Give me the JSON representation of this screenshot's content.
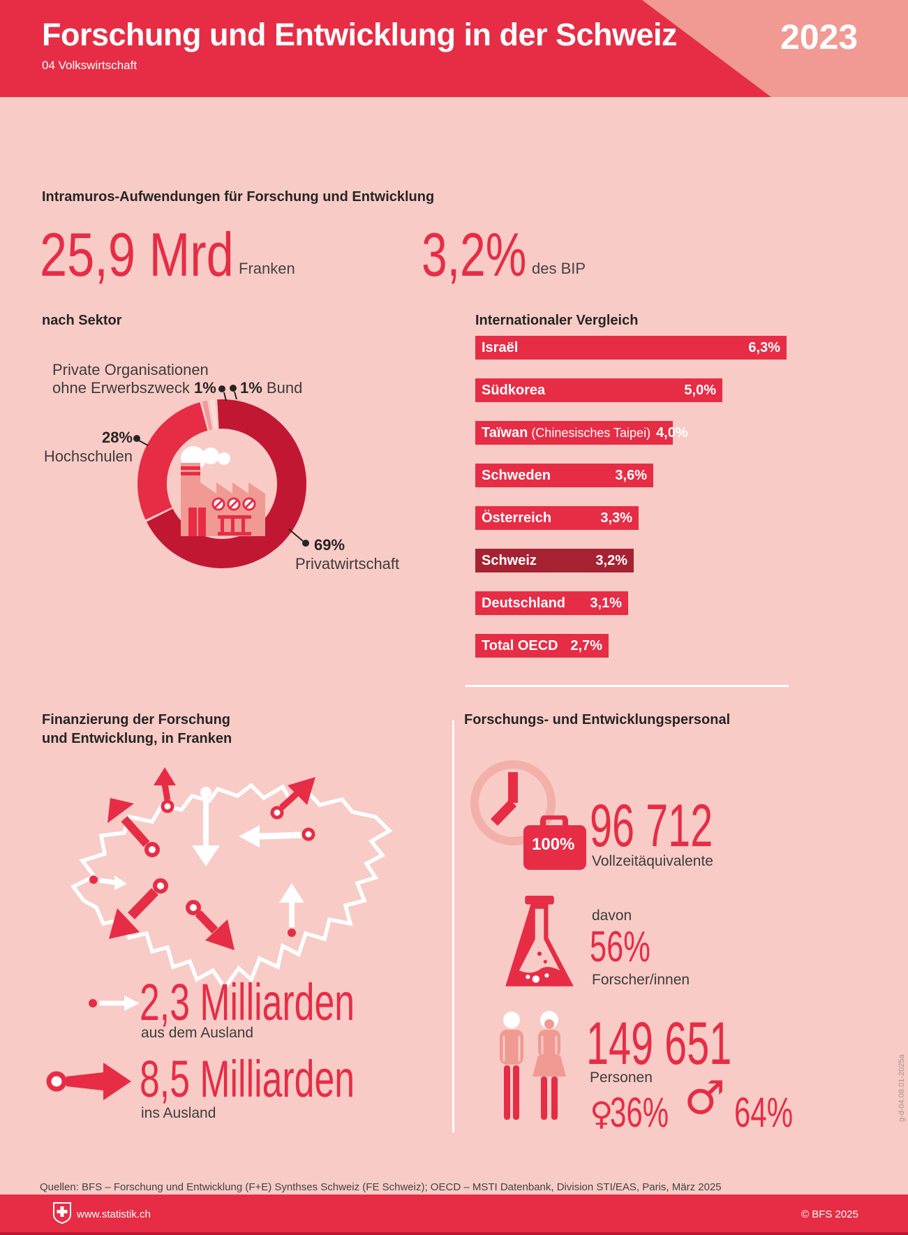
{
  "header": {
    "title": "Forschung und Entwicklung in der Schweiz",
    "subtitle": "04 Volkswirtschaft",
    "year": "2023"
  },
  "intramuros": {
    "heading": "Intramuros-Aufwendungen für Forschung und Entwicklung",
    "amount": "25,9 Mrd",
    "amount_unit": "Franken",
    "gdp_share": "3,2%",
    "gdp_unit": "des BIP"
  },
  "chart_data": [
    {
      "type": "pie",
      "title": "nach Sektor",
      "unit": "%",
      "slices": [
        {
          "key": "privatwirtschaft",
          "label": "Privatwirtschaft",
          "value": 69,
          "value_label": "69%",
          "color": "#c21732"
        },
        {
          "key": "hochschulen",
          "label": "Hochschulen",
          "value": 28,
          "value_label": "28%",
          "color": "#e62d45"
        },
        {
          "key": "private-organisationen",
          "label": "Private Organisationen ohne Erwerbszweck",
          "value": 1,
          "value_label": "1%",
          "color": "#ef9aa0",
          "display": {
            "line1": "Private Organisationen",
            "line2": "ohne Erwerbszweck"
          }
        },
        {
          "key": "bund",
          "label": "Bund",
          "value": 1,
          "value_label": "1%",
          "color": "#f8dcd8"
        }
      ]
    },
    {
      "type": "bar",
      "title": "Internationaler Vergleich",
      "unit": "% des BIP",
      "categories": [
        "Israël",
        "Südkorea",
        "Taïwan",
        "Schweden",
        "Österreich",
        "Schweiz",
        "Deutschland",
        "Total OECD"
      ],
      "category_suffixes": [
        "",
        "",
        "(Chinesisches Taipei)",
        "",
        "",
        "",
        "",
        ""
      ],
      "values": [
        6.3,
        5.0,
        4.0,
        3.6,
        3.3,
        3.2,
        3.1,
        2.7
      ],
      "value_labels": [
        "6,3%",
        "5,0%",
        "4,0%",
        "3,6%",
        "3,3%",
        "3,2%",
        "3,1%",
        "2,7%"
      ],
      "xlim": [
        0,
        6.3
      ],
      "highlight_index": 5,
      "bar_color": "#e62d45",
      "highlight_color": "#a52232",
      "legend_position": "none",
      "grid": false
    }
  ],
  "financing": {
    "heading_line1": "Finanzierung der Forschung",
    "heading_line2": "und Entwicklung, in Franken",
    "inflow_value": "2,3 Milliarden",
    "inflow_label": "aus dem Ausland",
    "outflow_value": "8,5 Milliarden",
    "outflow_label": "ins Ausland"
  },
  "personnel": {
    "heading": "Forschungs- und Entwicklungspersonal",
    "badge": "100%",
    "fte_value": "96 712",
    "fte_label": "Vollzeitäquivalente",
    "davon": "davon",
    "researchers_pct": "56%",
    "researchers_label": "Forscher/innen",
    "persons_value": "149 651",
    "persons_label": "Personen",
    "female_symbol": "♀",
    "female_pct": "36%",
    "male_symbol": "♂",
    "male_pct": "64%"
  },
  "footer": {
    "source": "Quellen: BFS – Forschung und Entwicklung (F+E) Synthses Schweiz (FE Schweiz); OECD – MSTI Datenbank, Division STI/EAS, Paris, März 2025",
    "site": "www.statistik.ch",
    "copyright": "© BFS 2025"
  },
  "side_code": "g-d-04.08.01-2025a",
  "colors": {
    "accent_red": "#e62d45",
    "dark_red": "#c21732",
    "highlight_maroon": "#a52232",
    "salmon": "#f09a93",
    "salmon_light": "#f3afa9",
    "pale_pink": "#f8dcd8",
    "background": "#f8cbc6",
    "text_dark": "#262523",
    "text_gray": "#434341"
  }
}
